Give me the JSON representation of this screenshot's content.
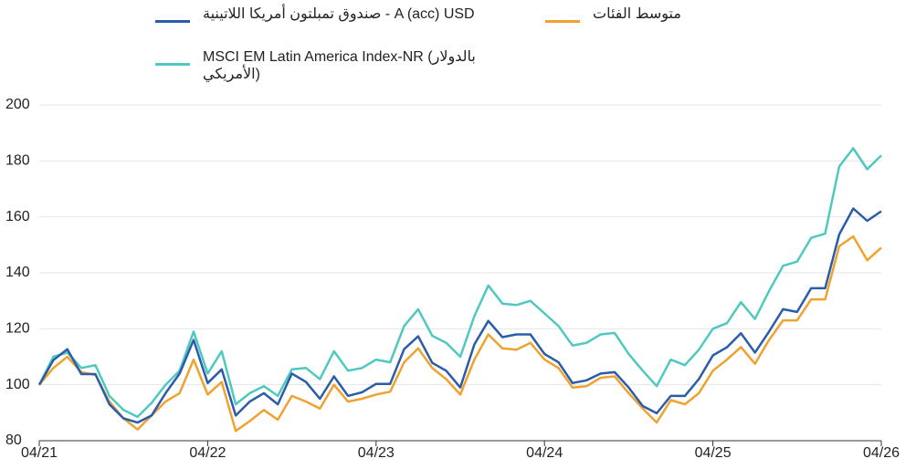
{
  "chart_data": {
    "type": "line",
    "categories": [
      "04/21",
      null,
      null,
      null,
      null,
      null,
      null,
      null,
      null,
      null,
      null,
      null,
      "04/22",
      null,
      null,
      null,
      null,
      null,
      null,
      null,
      null,
      null,
      null,
      null,
      "04/23",
      null,
      null,
      null,
      null,
      null,
      null,
      null,
      null,
      null,
      null,
      null,
      "04/24",
      null,
      null,
      null,
      null,
      null,
      null,
      null,
      null,
      null,
      null,
      null,
      "04/25",
      null,
      null,
      null,
      null,
      null,
      null,
      null,
      null,
      null,
      null,
      null,
      "04/26"
    ],
    "series": [
      {
        "name": "صندوق تمبلتون أمريكا اللاتينية - A (acc) USD",
        "color": "#2a5caa",
        "values": [
          100,
          108.8,
          112.7,
          103.8,
          103.8,
          93,
          88,
          86.5,
          89,
          97,
          104,
          116,
          100.6,
          105.5,
          89,
          94,
          97,
          93,
          104,
          101,
          95,
          103,
          96,
          97.3,
          100.3,
          100.3,
          112.7,
          117.3,
          107.8,
          105,
          99,
          114.4,
          122.8,
          117,
          118,
          118,
          111,
          108,
          100.6,
          101.6,
          104,
          104.5,
          99,
          92.4,
          89.8,
          96,
          96,
          102,
          110.5,
          113.4,
          118.4,
          111.5,
          119,
          127,
          126,
          134.5,
          134.5,
          153.7,
          163,
          158.6,
          162
        ]
      },
      {
        "name": "متوسط الفئات",
        "color": "#f0a22e",
        "values": [
          100,
          106,
          110,
          104.5,
          103.5,
          94,
          88,
          84,
          89,
          94,
          97,
          109,
          96.5,
          101,
          83.5,
          87,
          91,
          87.5,
          96,
          94,
          91.5,
          100,
          94,
          95,
          96.5,
          97.5,
          108,
          113,
          106,
          102,
          96.5,
          109,
          118,
          113,
          112.5,
          115,
          109,
          106,
          99,
          99.5,
          102.5,
          103,
          97,
          91.5,
          86.5,
          94.5,
          93,
          97,
          105,
          109,
          113.5,
          107.5,
          116,
          123,
          123,
          130.5,
          130.5,
          149.5,
          153,
          144.5,
          149
        ]
      },
      {
        "name": "MSCI EM Latin America Index-NR (بالدولار الأمريكي)",
        "color": "#4fc9c0",
        "values": [
          100,
          110,
          111.5,
          106,
          107,
          96,
          91,
          88.5,
          93.5,
          100,
          105,
          119,
          104,
          112,
          93,
          97,
          99.5,
          96,
          105.5,
          106,
          102,
          112,
          105,
          106,
          109,
          108,
          121,
          127,
          117.5,
          115,
          110,
          124.5,
          135.5,
          129,
          128.5,
          130,
          125.5,
          121,
          114,
          115,
          118,
          118.5,
          111,
          105,
          99.5,
          109,
          107,
          112.5,
          120,
          122,
          129.5,
          123.5,
          133.5,
          142.5,
          144,
          152.5,
          154,
          178,
          184.5,
          177,
          182
        ]
      }
    ],
    "ylim": [
      80,
      200
    ],
    "yticks": [
      80,
      100,
      120,
      140,
      160,
      180,
      200
    ],
    "grid": true
  }
}
